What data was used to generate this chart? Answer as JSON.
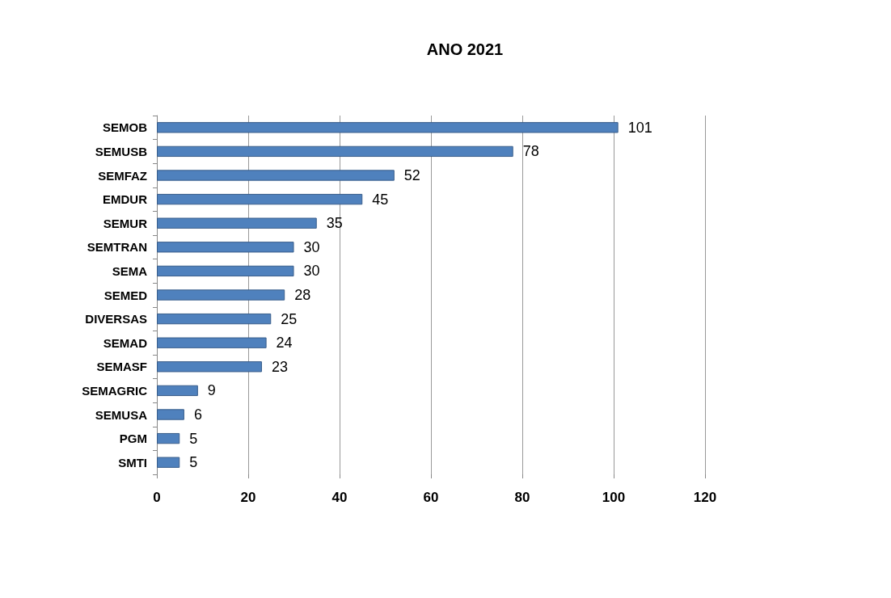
{
  "chart_data": {
    "type": "bar",
    "orientation": "horizontal",
    "title": "ANO 2021",
    "categories": [
      "SEMOB",
      "SEMUSB",
      "SEMFAZ",
      "EMDUR",
      "SEMUR",
      "SEMTRAN",
      "SEMA",
      "SEMED",
      "DIVERSAS",
      "SEMAD",
      "SEMASF",
      "SEMAGRIC",
      "SEMUSA",
      "PGM",
      "SMTI"
    ],
    "values": [
      101,
      78,
      52,
      45,
      35,
      30,
      30,
      28,
      25,
      24,
      23,
      9,
      6,
      5,
      5
    ],
    "color": "#4f81bd",
    "xlim": [
      0,
      120
    ],
    "xticks": [
      0,
      20,
      40,
      60,
      80,
      100,
      120
    ],
    "grid": "x",
    "data_labels": true
  }
}
